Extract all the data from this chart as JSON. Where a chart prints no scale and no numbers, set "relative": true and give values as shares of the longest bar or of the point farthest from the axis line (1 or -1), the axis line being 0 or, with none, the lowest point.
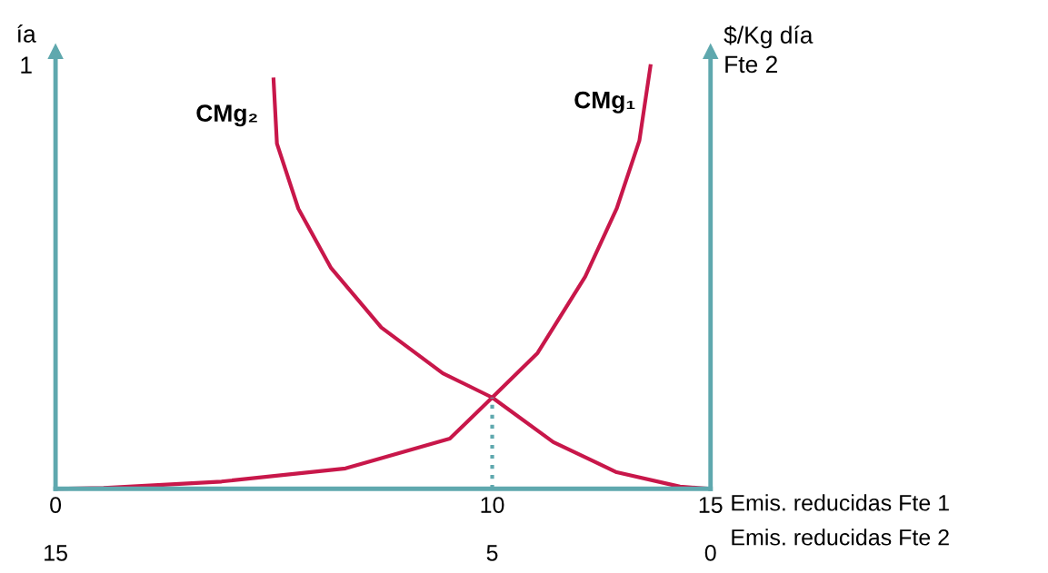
{
  "chart_data": {
    "type": "line",
    "relative": true,
    "ylabel": "ía\n1",
    "y2label": "$/Kg día\nFte 2",
    "xlabel": "Emis. reducidas Fte 1",
    "x2label": "Emis. reducidas Fte 2",
    "xlim": [
      0,
      15
    ],
    "xticks": [
      0,
      10,
      15
    ],
    "x2lim": [
      15,
      0
    ],
    "x2ticks": [
      15,
      5,
      0
    ],
    "series": [
      {
        "name": "CMg₁",
        "color": "#c8174a",
        "x": [
          0,
          1.1,
          3.8,
          6.64,
          9.03,
          10,
          11.04,
          12.13,
          12.85,
          13.37,
          13.63
        ],
        "values": [
          0,
          0.002,
          0.017,
          0.048,
          0.118,
          0.215,
          0.32,
          0.5,
          0.66,
          0.82,
          1.0
        ]
      },
      {
        "name": "CMg₂",
        "color": "#c8174a",
        "x": [
          4.99,
          5.07,
          5.56,
          6.31,
          7.46,
          8.87,
          10,
          11.4,
          12.85,
          14.3,
          15
        ],
        "values": [
          0.969,
          0.813,
          0.66,
          0.52,
          0.38,
          0.272,
          0.215,
          0.11,
          0.039,
          0.005,
          0
        ]
      }
    ],
    "ref_lines": [
      {
        "axis": "x",
        "value": 10,
        "color": "#5fa8ae",
        "line_style": "dotted"
      }
    ],
    "grid": false,
    "legend": false,
    "marker": "none",
    "line_style": "solid"
  }
}
